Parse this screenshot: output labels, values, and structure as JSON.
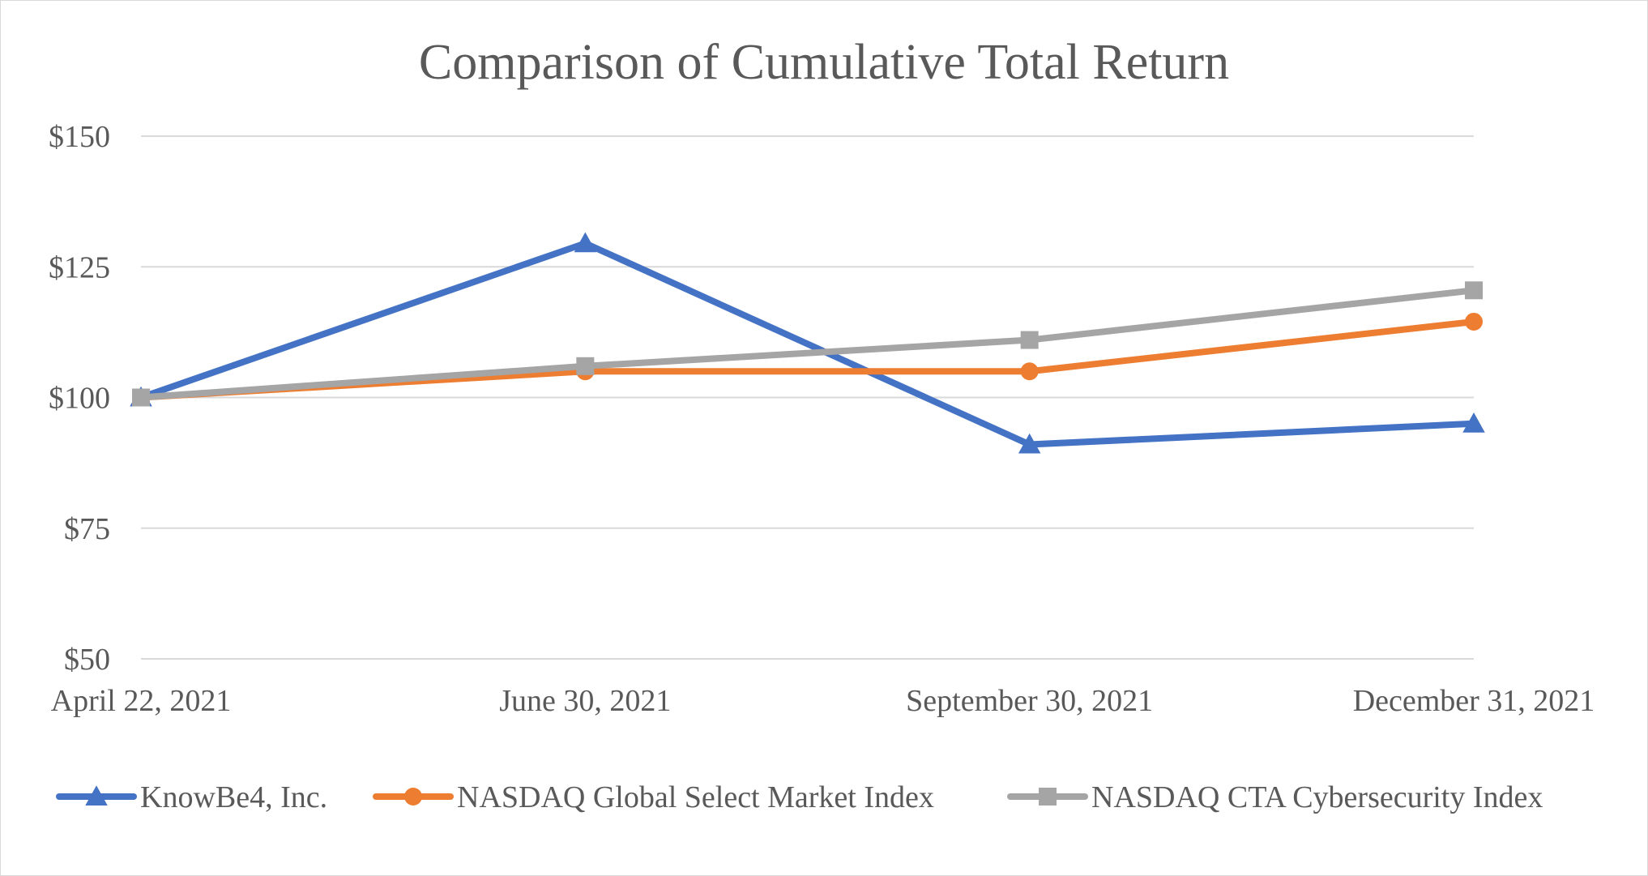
{
  "chart_data": {
    "type": "line",
    "title": "Comparison of Cumulative Total Return",
    "xlabel": "",
    "ylabel": "",
    "categories": [
      "April 22, 2021",
      "June 30, 2021",
      "September 30, 2021",
      "December 31, 2021"
    ],
    "ylim": [
      50,
      150
    ],
    "yticks": [
      50,
      75,
      100,
      125,
      150
    ],
    "ytick_labels": [
      "$50",
      "$75",
      "$100",
      "$125",
      "$150"
    ],
    "grid": true,
    "legend_position": "bottom",
    "series": [
      {
        "name": "KnowBe4, Inc.",
        "values": [
          100,
          129.5,
          91,
          95
        ],
        "color": "#4472c4",
        "marker": "triangle"
      },
      {
        "name": "NASDAQ Global Select Market Index",
        "values": [
          100,
          105,
          105,
          114.5
        ],
        "color": "#ed7d31",
        "marker": "circle"
      },
      {
        "name": "NASDAQ CTA Cybersecurity Index",
        "values": [
          100,
          106,
          111,
          120.5
        ],
        "color": "#a5a5a5",
        "marker": "square"
      }
    ]
  }
}
